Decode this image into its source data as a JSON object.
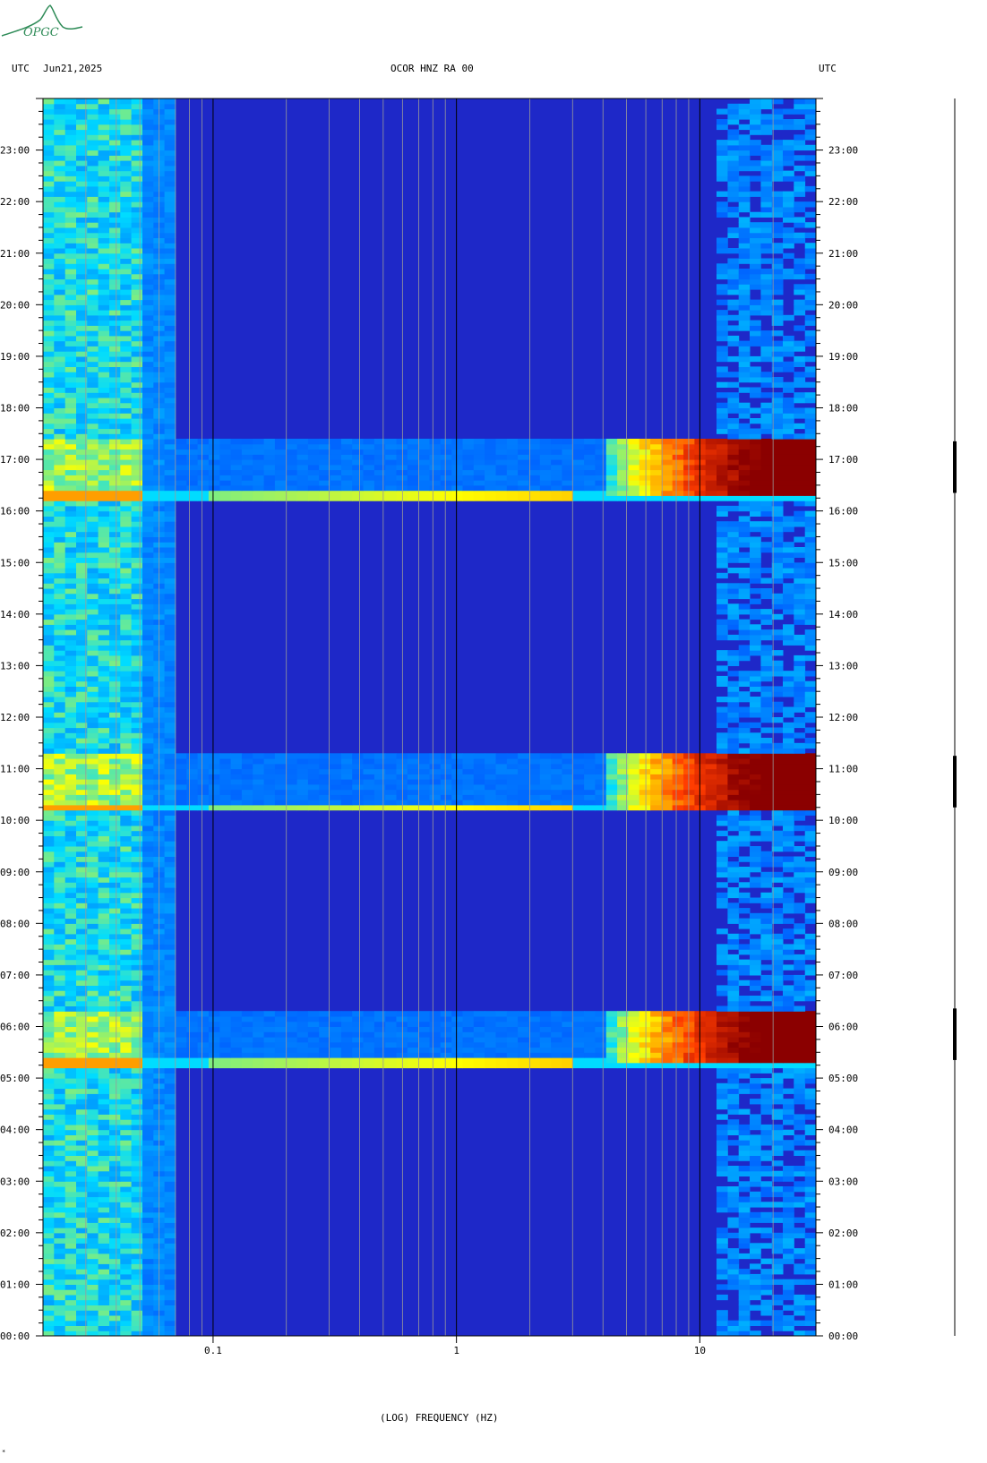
{
  "header": {
    "left_utc": "UTC",
    "date": "Jun21,2025",
    "station": "OCOR HNZ RA 00",
    "right_utc": "UTC"
  },
  "logo": {
    "text": "OPGC",
    "color": "#2e8b57"
  },
  "footer_mark": "*",
  "chart_data": {
    "type": "heatmap",
    "title": "OCOR HNZ RA 00",
    "xlabel": "(LOG) FREQUENCY (HZ)",
    "ylabel": "UTC",
    "x_scale": "log",
    "xlim": [
      0.02,
      30
    ],
    "x_ticks": [
      {
        "value": 0.1,
        "label": "0.1"
      },
      {
        "value": 1,
        "label": "1"
      },
      {
        "value": 10,
        "label": "10"
      }
    ],
    "ylim": [
      0,
      24
    ],
    "y_ticks": [
      "00:00",
      "01:00",
      "02:00",
      "03:00",
      "04:00",
      "05:00",
      "06:00",
      "07:00",
      "08:00",
      "09:00",
      "10:00",
      "11:00",
      "12:00",
      "13:00",
      "14:00",
      "15:00",
      "16:00",
      "17:00",
      "18:00",
      "19:00",
      "20:00",
      "21:00",
      "22:00",
      "23:00"
    ],
    "colormap": [
      "#0000c8",
      "#0064ff",
      "#00dcff",
      "#ffff00",
      "#ff3c00",
      "#8b0000"
    ],
    "background_color": "#1e28c8",
    "narrow_events_utc": [
      5.3,
      10.25,
      16.3
    ],
    "broadband_events_utc": [
      {
        "start": 5.35,
        "end": 6.35
      },
      {
        "start": 10.25,
        "end": 11.25
      },
      {
        "start": 16.35,
        "end": 17.35
      }
    ]
  }
}
